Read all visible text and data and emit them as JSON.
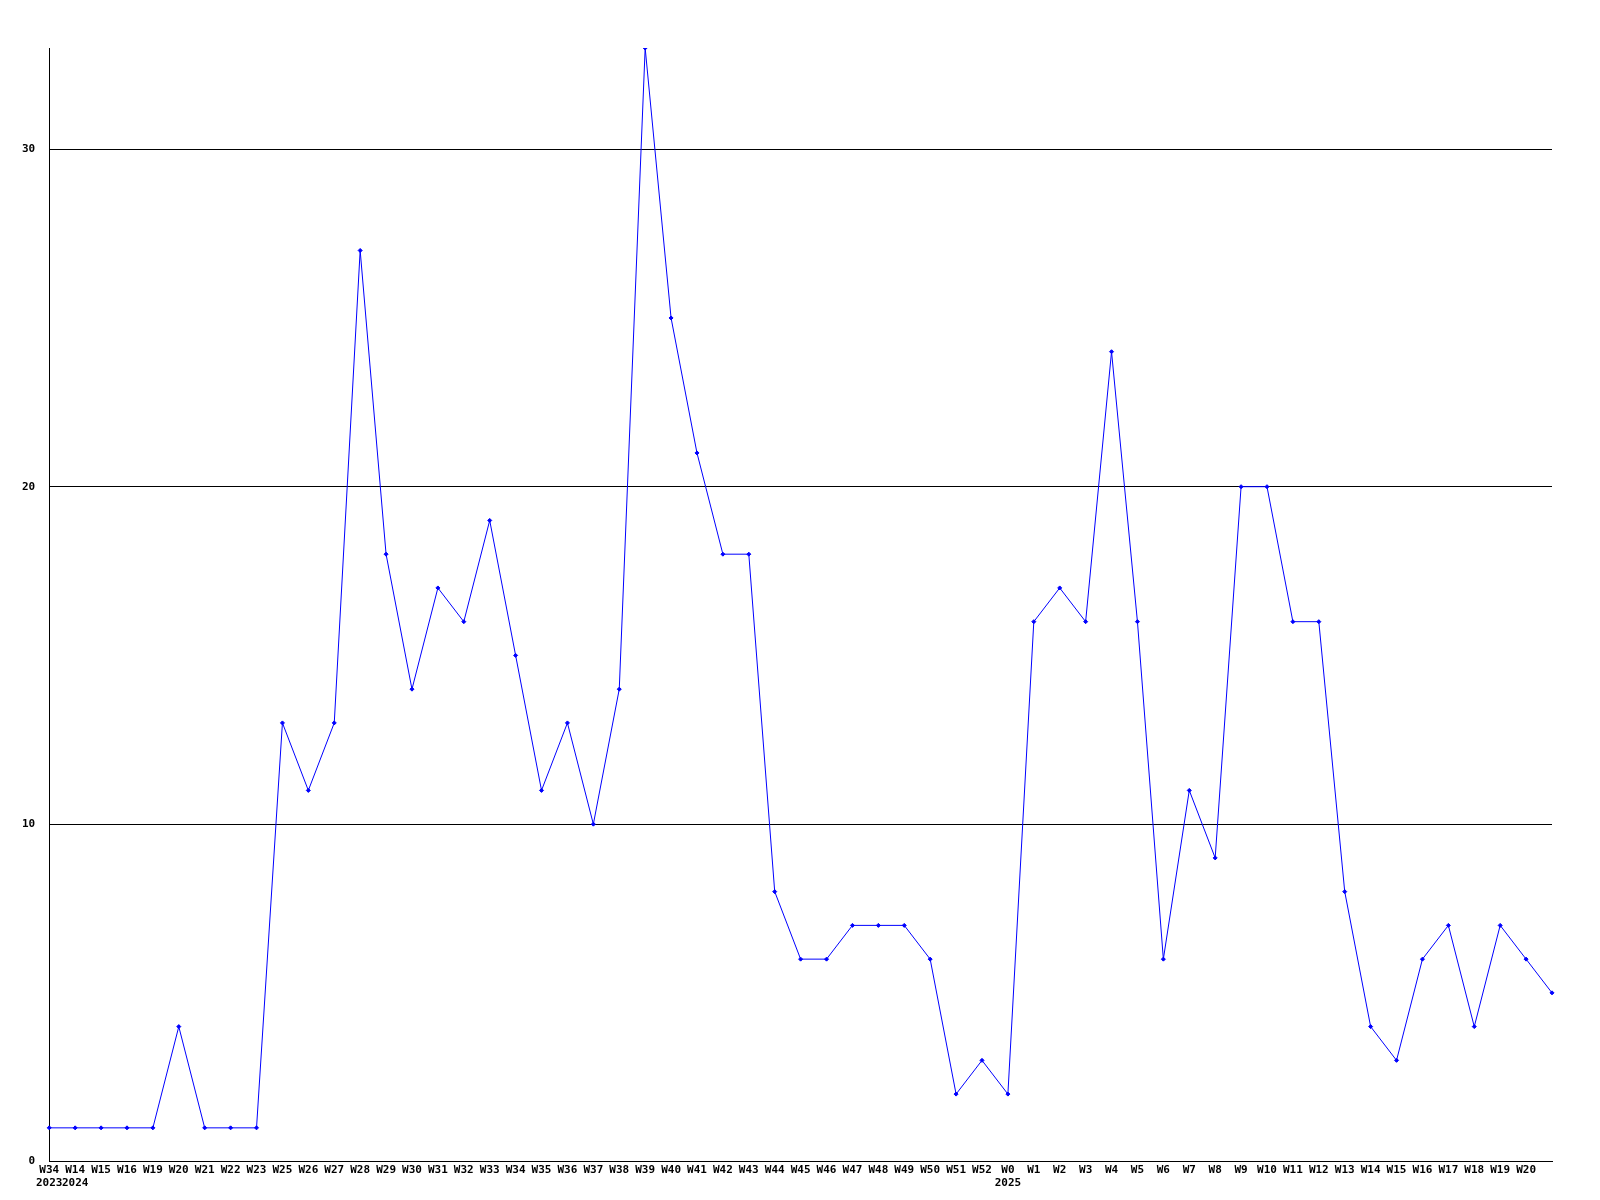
{
  "chart_data": {
    "type": "line",
    "categories": [
      "W34\n2023",
      "W14\n2024",
      "W15",
      "W16",
      "W19",
      "W20",
      "W21",
      "W22",
      "W23",
      "W25",
      "W26",
      "W27",
      "W28",
      "W29",
      "W30",
      "W31",
      "W32",
      "W33",
      "W34",
      "W35",
      "W36",
      "W37",
      "W38",
      "W39",
      "W40",
      "W41",
      "W42",
      "W43",
      "W44",
      "W45",
      "W46",
      "W47",
      "W48",
      "W49",
      "W50",
      "W51",
      "W52",
      "W0\n2025",
      "W1",
      "W2",
      "W3",
      "W4",
      "W5",
      "W6",
      "W7",
      "W8",
      "W9",
      "W10",
      "W11",
      "W12",
      "W13",
      "W14",
      "W15",
      "W16",
      "W17",
      "W18",
      "W19",
      "W20",
      null
    ],
    "series": [
      {
        "color": "#0000ff",
        "values": [
          1,
          1,
          1,
          1,
          1,
          4,
          1,
          1,
          1,
          13,
          11,
          13,
          27,
          18,
          14,
          17,
          16,
          19,
          15,
          11,
          13,
          10,
          14,
          33,
          25,
          21,
          18,
          18,
          8,
          6,
          6,
          7,
          7,
          7,
          6,
          2,
          3,
          2,
          16,
          17,
          16,
          24,
          16,
          6,
          11,
          9,
          20,
          20,
          16,
          16,
          8,
          4,
          3,
          6,
          7,
          4,
          7,
          6,
          5
        ]
      }
    ],
    "ylim": [
      0,
      33
    ],
    "yticks": [
      0,
      10,
      20,
      30
    ],
    "grid": "y",
    "legend": false,
    "marker": "diamond",
    "line_style": "solid"
  }
}
